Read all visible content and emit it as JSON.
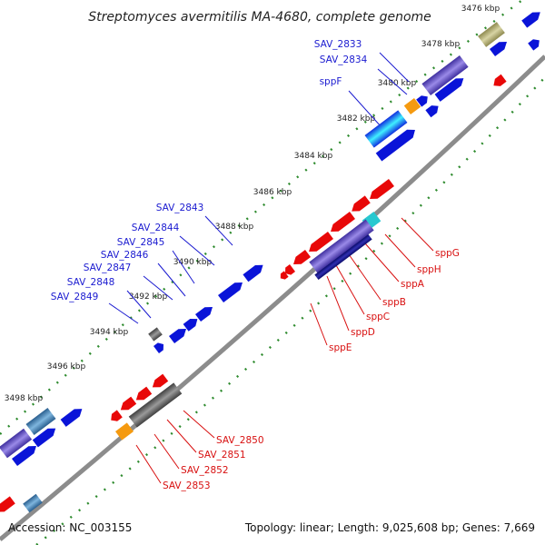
{
  "title": "Streptomyces avermitilis MA-4680, complete genome",
  "footer": {
    "accession": "Accession: NC_003155",
    "summary": "Topology: linear; Length: 9,025,608 bp; Genes: 7,669"
  },
  "ticks": [
    "3476 kbp",
    "3478 kbp",
    "3480 kbp",
    "3482 kbp",
    "3484 kbp",
    "3486 kbp",
    "3488 kbp",
    "3490 kbp",
    "3492 kbp",
    "3494 kbp",
    "3496 kbp",
    "3498 kbp"
  ],
  "labels_forward": [
    "SAV_2833",
    "SAV_2834",
    "sppF",
    "SAV_2843",
    "SAV_2844",
    "SAV_2845",
    "SAV_2846",
    "SAV_2847",
    "SAV_2848",
    "SAV_2849"
  ],
  "labels_reverse": [
    "sppG",
    "sppH",
    "sppA",
    "sppB",
    "sppC",
    "sppD",
    "sppE",
    "SAV_2850",
    "SAV_2851",
    "SAV_2852",
    "SAV_2853"
  ],
  "colors": {
    "forward_gene": "#0a14d8",
    "reverse_gene": "#e80808",
    "forward_label": "#1a1ad0",
    "reverse_label": "#d81010",
    "backbone": "#8c8c8c",
    "tick_dots": "#2e8b2e"
  }
}
